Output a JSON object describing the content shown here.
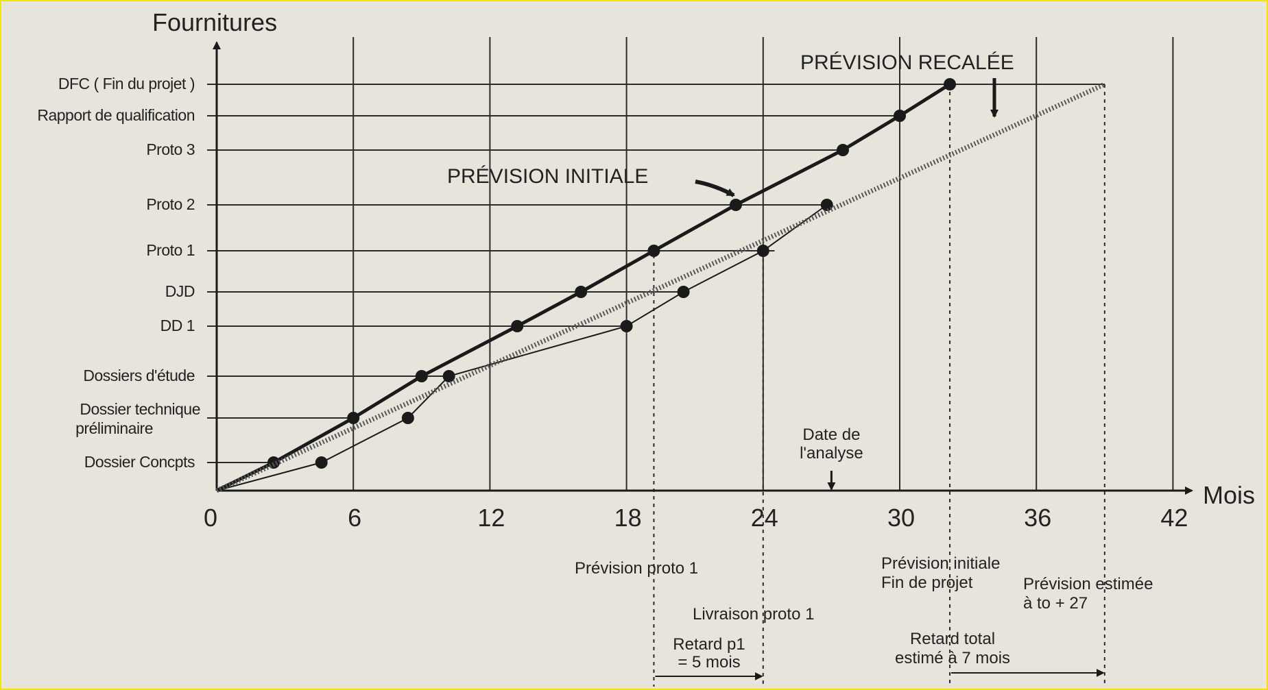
{
  "chart_data": {
    "type": "line",
    "ylabel": "Fournitures",
    "xlabel": "Mois",
    "xlim": [
      0,
      42
    ],
    "x_ticks": [
      0,
      6,
      12,
      18,
      24,
      30,
      36,
      42
    ],
    "x_tick_labels": [
      "0",
      "6",
      "12",
      "18",
      "24",
      "30",
      "36",
      "42"
    ],
    "y_categories": [
      "Dossier Concpts",
      "Dossier technique préliminaire",
      "Dossiers d'étude",
      "DD 1",
      "DJD",
      "Proto 1",
      "Proto 2",
      "Proto 3",
      "Rapport de qualification",
      "DFC ( Fin du projet )"
    ],
    "y_categories_display": [
      [
        "Dossier Concpts"
      ],
      [
        "Dossier technique",
        "préliminaire"
      ],
      [
        "Dossiers d'étude"
      ],
      [
        "DD 1"
      ],
      [
        "DJD"
      ],
      [
        "Proto 1"
      ],
      [
        "Proto 2"
      ],
      [
        "Proto 3"
      ],
      [
        "Rapport de qualification"
      ],
      [
        "DFC ( Fin du projet )"
      ]
    ],
    "series": [
      {
        "key": "initial",
        "style": "thick-solid",
        "points": [
          [
            0,
            0
          ],
          [
            2.5,
            1
          ],
          [
            6,
            2
          ],
          [
            9,
            3
          ],
          [
            13.2,
            4
          ],
          [
            16,
            5
          ],
          [
            19.2,
            6
          ],
          [
            22.8,
            7
          ],
          [
            27.5,
            8
          ],
          [
            30,
            9
          ],
          [
            32.2,
            10
          ]
        ]
      },
      {
        "key": "actual",
        "style": "thin-solid",
        "points": [
          [
            0,
            0
          ],
          [
            4.6,
            1
          ],
          [
            8.4,
            2
          ],
          [
            10.2,
            3
          ],
          [
            18,
            4
          ],
          [
            20.5,
            5
          ],
          [
            24,
            6
          ],
          [
            26.8,
            7
          ]
        ]
      },
      {
        "key": "recalee",
        "style": "dotted-thick",
        "points": [
          [
            0,
            0
          ],
          [
            39,
            10
          ]
        ]
      }
    ],
    "annotations": {
      "prevision_initiale": "PRÉVISION INITIALE",
      "prevision_recalee": "PRÉVISION RECALÉE",
      "date_analyse": [
        "Date de",
        "l'analyse"
      ],
      "prevision_proto1": "Prévision proto 1",
      "livraison_proto1": "Livraison proto 1",
      "retard_p1": [
        "Retard p1",
        "= 5 mois"
      ],
      "prevision_initiale_fin": [
        "Prévision initiale",
        "Fin de projet"
      ],
      "prevision_estimee": [
        "Prévision estimée",
        "à to + 27"
      ],
      "retard_total": [
        "Retard total",
        "estimé à 7 mois"
      ]
    },
    "marker_x": {
      "date_analyse": 27,
      "prevision_proto1": 19.2,
      "livraison_proto1": 24,
      "fin_initiale": 32.2,
      "fin_estimee": 39
    },
    "grid": true,
    "colors": {
      "line": "#1a1a1a",
      "grid": "#2a2a2a",
      "background": "#e7e4dc"
    }
  }
}
